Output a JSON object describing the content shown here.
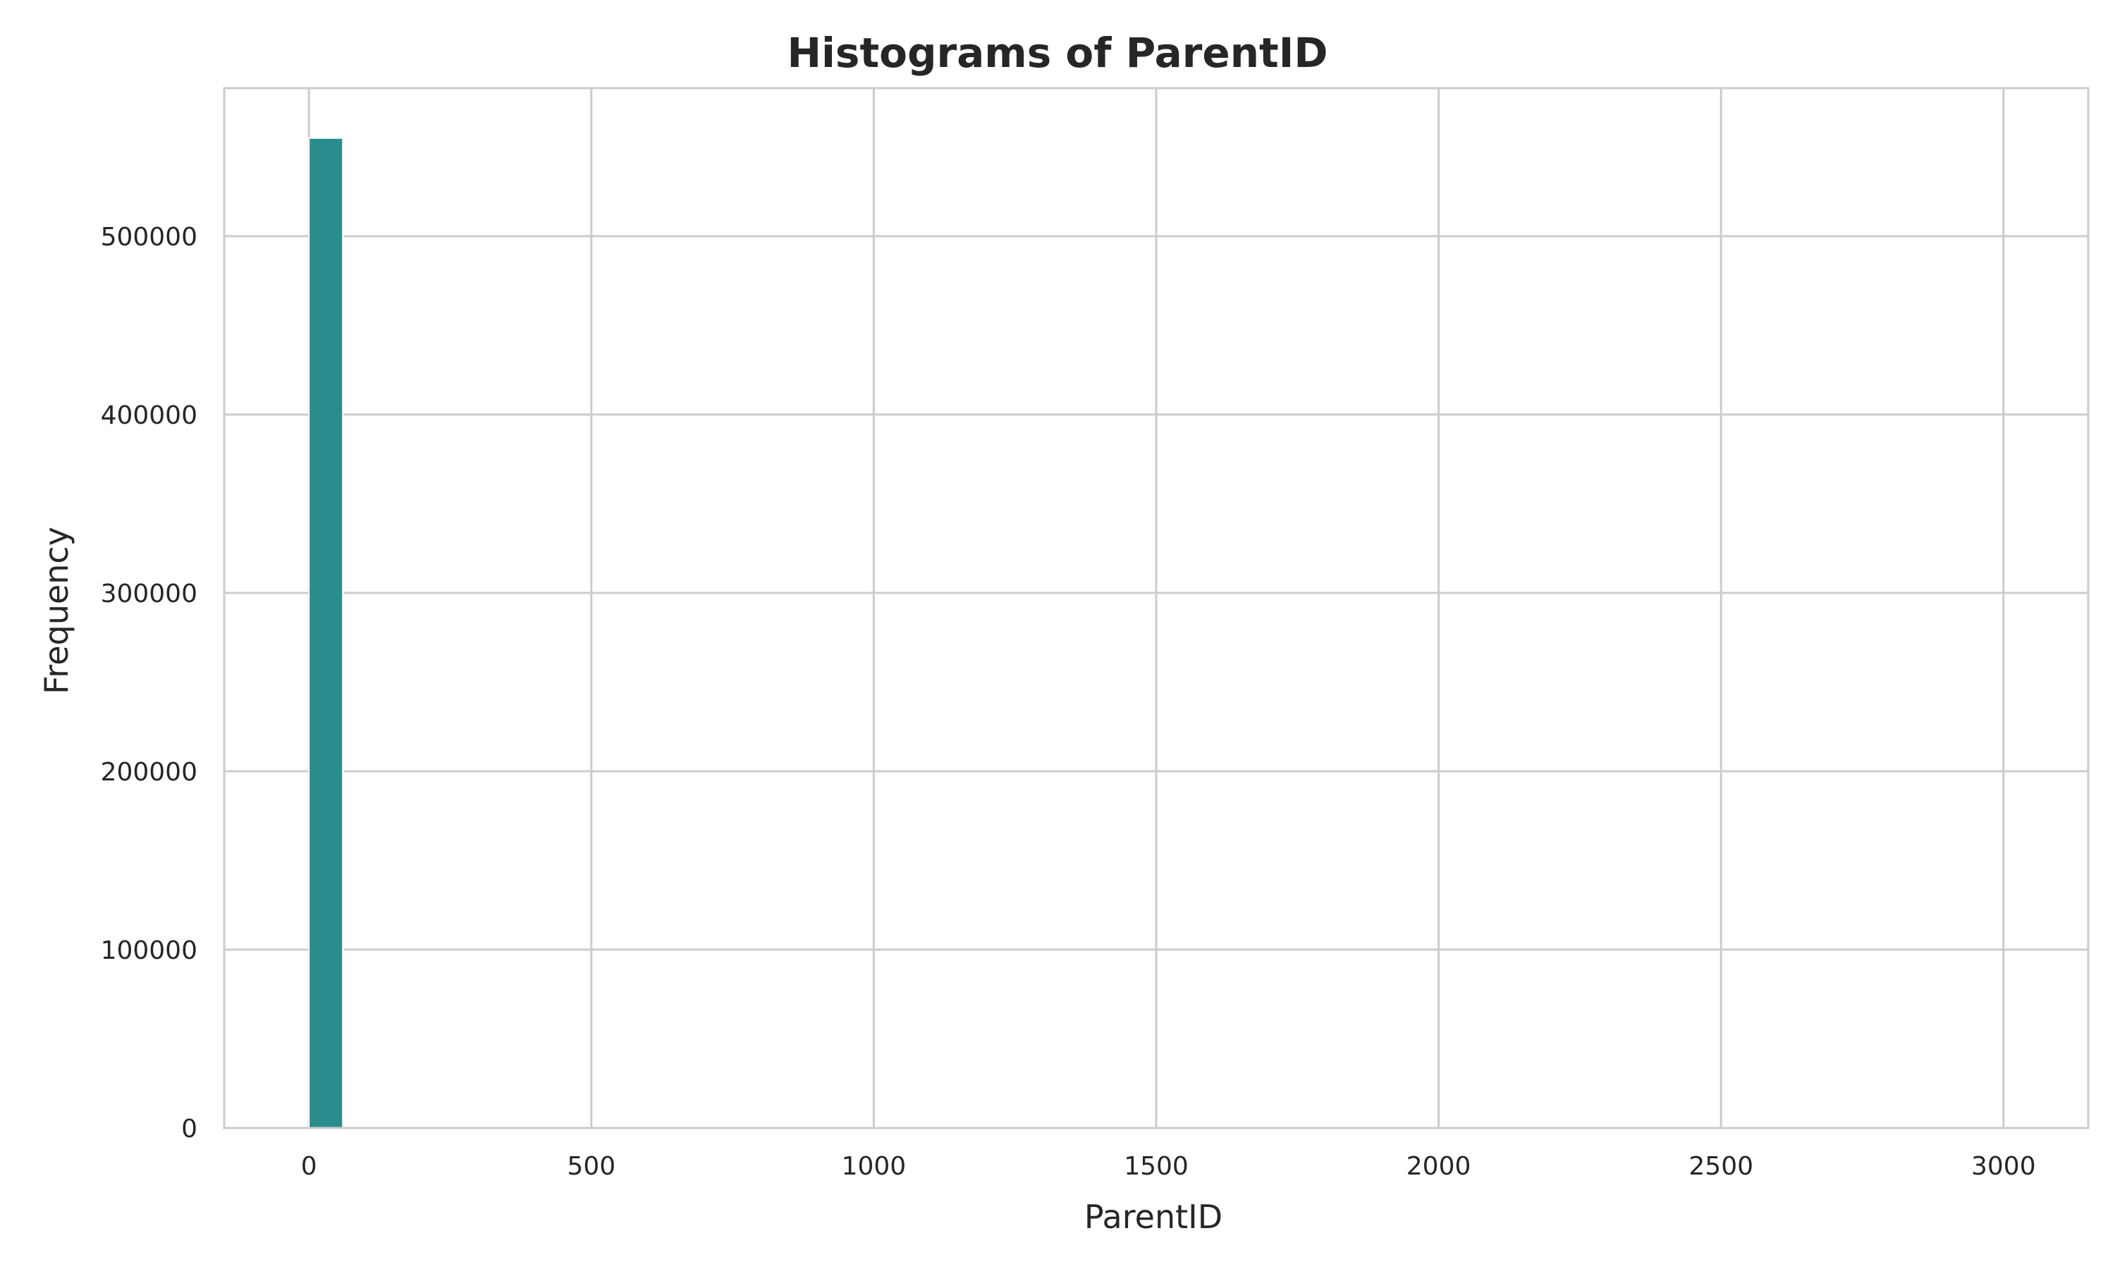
{
  "chart_data": {
    "type": "bar",
    "title": "Histograms of ParentID",
    "xlabel": "ParentID",
    "ylabel": "Frequency",
    "xlim": [
      -150,
      3150
    ],
    "ylim": [
      0,
      583000
    ],
    "x_ticks": [
      0,
      500,
      1000,
      1500,
      2000,
      2500,
      3000
    ],
    "y_ticks": [
      0,
      100000,
      200000,
      300000,
      400000,
      500000
    ],
    "bins": [
      {
        "x0": 0,
        "x1": 60,
        "value": 555000
      }
    ],
    "grid": true,
    "bar_color": "#2a8d8d",
    "grid_color": "#cccccc",
    "spine_color": "#cccccc"
  }
}
